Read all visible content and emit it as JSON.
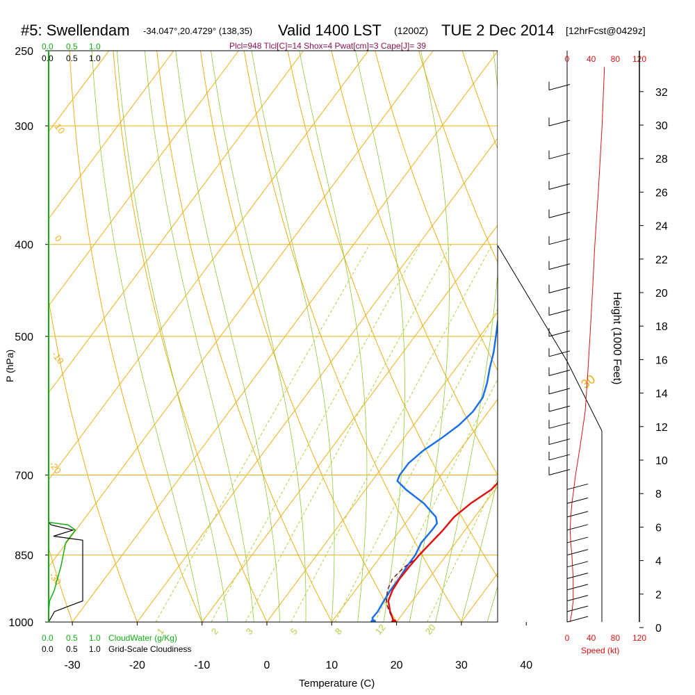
{
  "header": {
    "station": "#5: Swellendam",
    "coords": "-34.047°,20.4729° (138,35)",
    "valid": "Valid 1400 LST",
    "zulu": "(1200Z)",
    "date": "TUE 2 Dec 2014",
    "forecast": "[12hrFcst@0429z]"
  },
  "indices": "Plcl=948 Tlcl[C]=14 Shox=4 Pwat[cm]=3 Cape[J]= 39",
  "chart_data": {
    "type": "line",
    "title": "#5: Swellendam",
    "xlabel": "Temperature (C)",
    "ylabel": "P (hPa)",
    "y2label": "Height (1000 Feet)",
    "xlim": [
      -35,
      45
    ],
    "plim": [
      1000,
      250
    ],
    "x_ticks": [
      -30,
      -20,
      -10,
      0,
      10,
      20,
      30,
      40
    ],
    "p_ticks": [
      1000,
      850,
      700,
      500,
      400,
      300,
      250
    ],
    "height_ticks": [
      0,
      2,
      4,
      6,
      8,
      10,
      12,
      14,
      16,
      18,
      20,
      22,
      24,
      26,
      28,
      30,
      32
    ],
    "isotherm_labels": [
      "10",
      "0",
      "-10",
      "-20",
      "-30"
    ],
    "dry_adiabat_labels": [
      "0",
      "10",
      "20",
      "30"
    ],
    "mixing_ratio_labels": [
      "1",
      "2",
      "3",
      "5",
      "8",
      "12",
      "20"
    ],
    "temperature": [
      [
        1000,
        19.6
      ],
      [
        975,
        17.8
      ],
      [
        950,
        16.3
      ],
      [
        925,
        15.7
      ],
      [
        900,
        15.5
      ],
      [
        875,
        15.6
      ],
      [
        850,
        15.8
      ],
      [
        825,
        16.2
      ],
      [
        800,
        16.6
      ],
      [
        775,
        16.8
      ],
      [
        750,
        17.8
      ],
      [
        725,
        19.4
      ],
      [
        700,
        19.9
      ],
      [
        675,
        19.4
      ],
      [
        650,
        18.6
      ],
      [
        625,
        17.5
      ],
      [
        600,
        16.0
      ],
      [
        575,
        14.4
      ],
      [
        550,
        12.6
      ],
      [
        525,
        10.7
      ],
      [
        500,
        8.9
      ],
      [
        475,
        7.0
      ],
      [
        450,
        5.4
      ],
      [
        425,
        3.9
      ],
      [
        400,
        2.2
      ],
      [
        375,
        0.6
      ],
      [
        350,
        -0.7
      ],
      [
        325,
        -2.2
      ],
      [
        300,
        -3.9
      ],
      [
        275,
        -5.6
      ],
      [
        255,
        -6.7
      ]
    ],
    "dewpoint": [
      [
        1000,
        16.4
      ],
      [
        990,
        15.8
      ],
      [
        975,
        15.9
      ],
      [
        950,
        15.6
      ],
      [
        925,
        15.4
      ],
      [
        900,
        15.4
      ],
      [
        875,
        15.2
      ],
      [
        850,
        15.2
      ],
      [
        825,
        14.7
      ],
      [
        800,
        14.9
      ],
      [
        787,
        14.9
      ],
      [
        775,
        14.0
      ],
      [
        750,
        10.6
      ],
      [
        725,
        6.2
      ],
      [
        710,
        3.9
      ],
      [
        700,
        3.6
      ],
      [
        680,
        3.6
      ],
      [
        660,
        4.4
      ],
      [
        640,
        5.8
      ],
      [
        620,
        7.0
      ],
      [
        600,
        7.6
      ],
      [
        580,
        7.5
      ],
      [
        560,
        6.5
      ],
      [
        540,
        5.2
      ],
      [
        520,
        4.0
      ],
      [
        500,
        2.5
      ],
      [
        480,
        0.9
      ],
      [
        460,
        -0.7
      ],
      [
        440,
        -2.6
      ],
      [
        420,
        -4.3
      ],
      [
        400,
        -5.9
      ],
      [
        380,
        -7.1
      ],
      [
        360,
        -7.6
      ],
      [
        340,
        -7.3
      ],
      [
        320,
        -6.5
      ],
      [
        300,
        -5.5
      ],
      [
        280,
        -5.5
      ],
      [
        260,
        -5.9
      ],
      [
        255,
        -6.0
      ]
    ],
    "parcel": [
      [
        1000,
        19.6
      ],
      [
        975,
        17.7
      ],
      [
        960,
        16.6
      ],
      [
        948,
        15.9
      ],
      [
        925,
        14.9
      ],
      [
        900,
        14.4
      ],
      [
        875,
        14.9
      ],
      [
        860,
        15.6
      ]
    ],
    "wind_scale_kt": [
      0,
      40,
      80,
      120
    ],
    "wind_speed_label": "Speed (kt)",
    "wind_speed_profile": [
      [
        1000,
        5
      ],
      [
        975,
        8
      ],
      [
        950,
        10
      ],
      [
        925,
        10
      ],
      [
        900,
        10
      ],
      [
        875,
        9
      ],
      [
        850,
        8
      ],
      [
        825,
        6
      ],
      [
        800,
        5
      ],
      [
        775,
        6
      ],
      [
        750,
        8
      ],
      [
        725,
        11
      ],
      [
        700,
        14
      ],
      [
        675,
        18
      ],
      [
        650,
        22
      ],
      [
        625,
        26
      ],
      [
        600,
        30
      ],
      [
        575,
        32
      ],
      [
        550,
        34
      ],
      [
        500,
        38
      ],
      [
        450,
        42
      ],
      [
        400,
        46
      ],
      [
        350,
        52
      ],
      [
        300,
        58
      ],
      [
        260,
        62
      ]
    ],
    "cloud_water_label": "CloudWater (g/Kg)",
    "cloudiness_label": "Grid-Scale Cloudiness",
    "cloud_scale": [
      "0.0",
      "0.5",
      "1.0"
    ],
    "cloud_water": [
      [
        1000,
        0
      ],
      [
        975,
        0
      ],
      [
        950,
        0.02
      ],
      [
        925,
        0.12
      ],
      [
        900,
        0.18
      ],
      [
        875,
        0.25
      ],
      [
        850,
        0.3
      ],
      [
        825,
        0.35
      ],
      [
        800,
        0.55
      ],
      [
        790,
        0.4
      ],
      [
        785,
        0
      ],
      [
        700,
        0
      ]
    ],
    "cloudiness": [
      [
        1000,
        0
      ],
      [
        975,
        0.12
      ],
      [
        950,
        0.7
      ],
      [
        900,
        0.7
      ],
      [
        850,
        0.7
      ],
      [
        820,
        0.7
      ],
      [
        812,
        0.1
      ],
      [
        800,
        0.5
      ],
      [
        790,
        0.05
      ],
      [
        785,
        0
      ],
      [
        700,
        0
      ]
    ],
    "wind_speed_fill_boundary_kt": 52,
    "colors": {
      "temperature": "#e01010",
      "dewpoint": "#1a70e8",
      "parcel": "#7a1040",
      "isotherm": "#eeae16",
      "pressure": "#eeb216",
      "dry_adiabat": "#eeae16",
      "moist_adiabat": "#92c832",
      "mixing_ratio": "#b0d040",
      "cloud_water": "#10b010",
      "cloudiness": "#000000",
      "wind_speed": "#e01010",
      "indices": "#8b1050"
    }
  }
}
